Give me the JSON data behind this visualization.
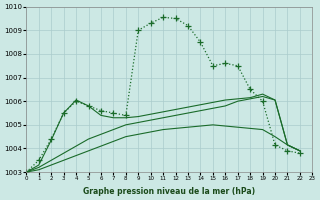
{
  "xlabel": "Graphe pression niveau de la mer (hPa)",
  "xlim": [
    0,
    23
  ],
  "ylim": [
    1003,
    1010
  ],
  "yticks": [
    1003,
    1004,
    1005,
    1006,
    1007,
    1008,
    1009,
    1010
  ],
  "xticks": [
    0,
    1,
    2,
    3,
    4,
    5,
    6,
    7,
    8,
    9,
    10,
    11,
    12,
    13,
    14,
    15,
    16,
    17,
    18,
    19,
    20,
    21,
    22,
    23
  ],
  "xtick_labels": [
    "0",
    "1",
    "2",
    "3",
    "4",
    "5",
    "6",
    "7",
    "8",
    "9",
    "10",
    "11",
    "12",
    "13",
    "14",
    "15",
    "16",
    "17",
    "18",
    "19",
    "20",
    "21",
    "22",
    "23"
  ],
  "bg_color": "#cce8e4",
  "grid_color": "#aacccc",
  "line_color": "#1a6b2a",
  "line1_y": [
    1003.0,
    1003.5,
    1004.4,
    1005.5,
    1006.0,
    1005.8,
    1005.6,
    1005.5,
    1005.4,
    1009.0,
    1009.3,
    1009.55,
    1009.5,
    1009.2,
    1008.5,
    1007.5,
    1007.6,
    1007.5,
    1006.5,
    1006.0,
    1004.15,
    1003.9,
    1003.8
  ],
  "line2_y": [
    1003.0,
    1003.3,
    1004.35,
    1005.5,
    1006.05,
    1005.8,
    1005.4,
    1005.3,
    1005.3,
    1005.35,
    1005.45,
    1005.55,
    1005.65,
    1005.75,
    1005.85,
    1005.95,
    1006.05,
    1006.1,
    1006.15,
    1006.3,
    1006.05,
    1004.15,
    1003.9
  ],
  "line3_y": [
    1003.0,
    1003.2,
    1003.5,
    1003.8,
    1004.1,
    1004.4,
    1004.6,
    1004.8,
    1005.0,
    1005.1,
    1005.2,
    1005.3,
    1005.4,
    1005.5,
    1005.6,
    1005.7,
    1005.8,
    1006.0,
    1006.1,
    1006.2,
    1006.05,
    1004.15,
    1003.9
  ],
  "line4_y": [
    1003.0,
    1003.1,
    1003.3,
    1003.5,
    1003.7,
    1003.9,
    1004.1,
    1004.3,
    1004.5,
    1004.6,
    1004.7,
    1004.8,
    1004.85,
    1004.9,
    1004.95,
    1005.0,
    1004.95,
    1004.9,
    1004.85,
    1004.8,
    1004.5,
    1004.15,
    1003.9
  ]
}
